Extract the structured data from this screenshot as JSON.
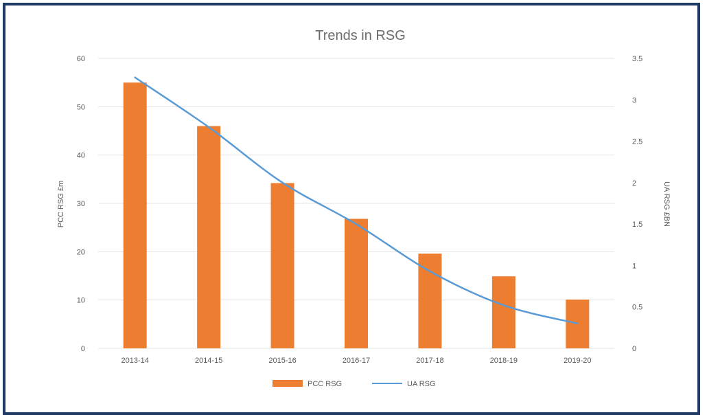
{
  "chart_data": {
    "type": "bar",
    "title": "Trends in RSG",
    "categories": [
      "2013-14",
      "2014-15",
      "2015-16",
      "2016-17",
      "2017-18",
      "2018-19",
      "2019-20"
    ],
    "series": [
      {
        "name": "PCC RSG",
        "kind": "bar",
        "axis": "left",
        "color": "#ed7d31",
        "values": [
          55,
          46,
          34.2,
          26.8,
          19.6,
          14.9,
          10.1
        ]
      },
      {
        "name": "UA RSG",
        "kind": "line",
        "axis": "right",
        "color": "#5b9bd5",
        "values": [
          3.27,
          2.67,
          2.0,
          1.5,
          0.93,
          0.52,
          0.3
        ]
      }
    ],
    "ylabel": "PCC RSG £m",
    "y2label": "UA RSG £BN",
    "ylim": [
      0,
      60
    ],
    "y2lim": [
      0,
      3.5
    ],
    "yticks": [
      "0",
      "10",
      "20",
      "30",
      "40",
      "50",
      "60"
    ],
    "y2ticks": [
      "0",
      "0.5",
      "1",
      "1.5",
      "2",
      "2.5",
      "3",
      "3.5"
    ],
    "grid": true,
    "legend": "bottom"
  }
}
